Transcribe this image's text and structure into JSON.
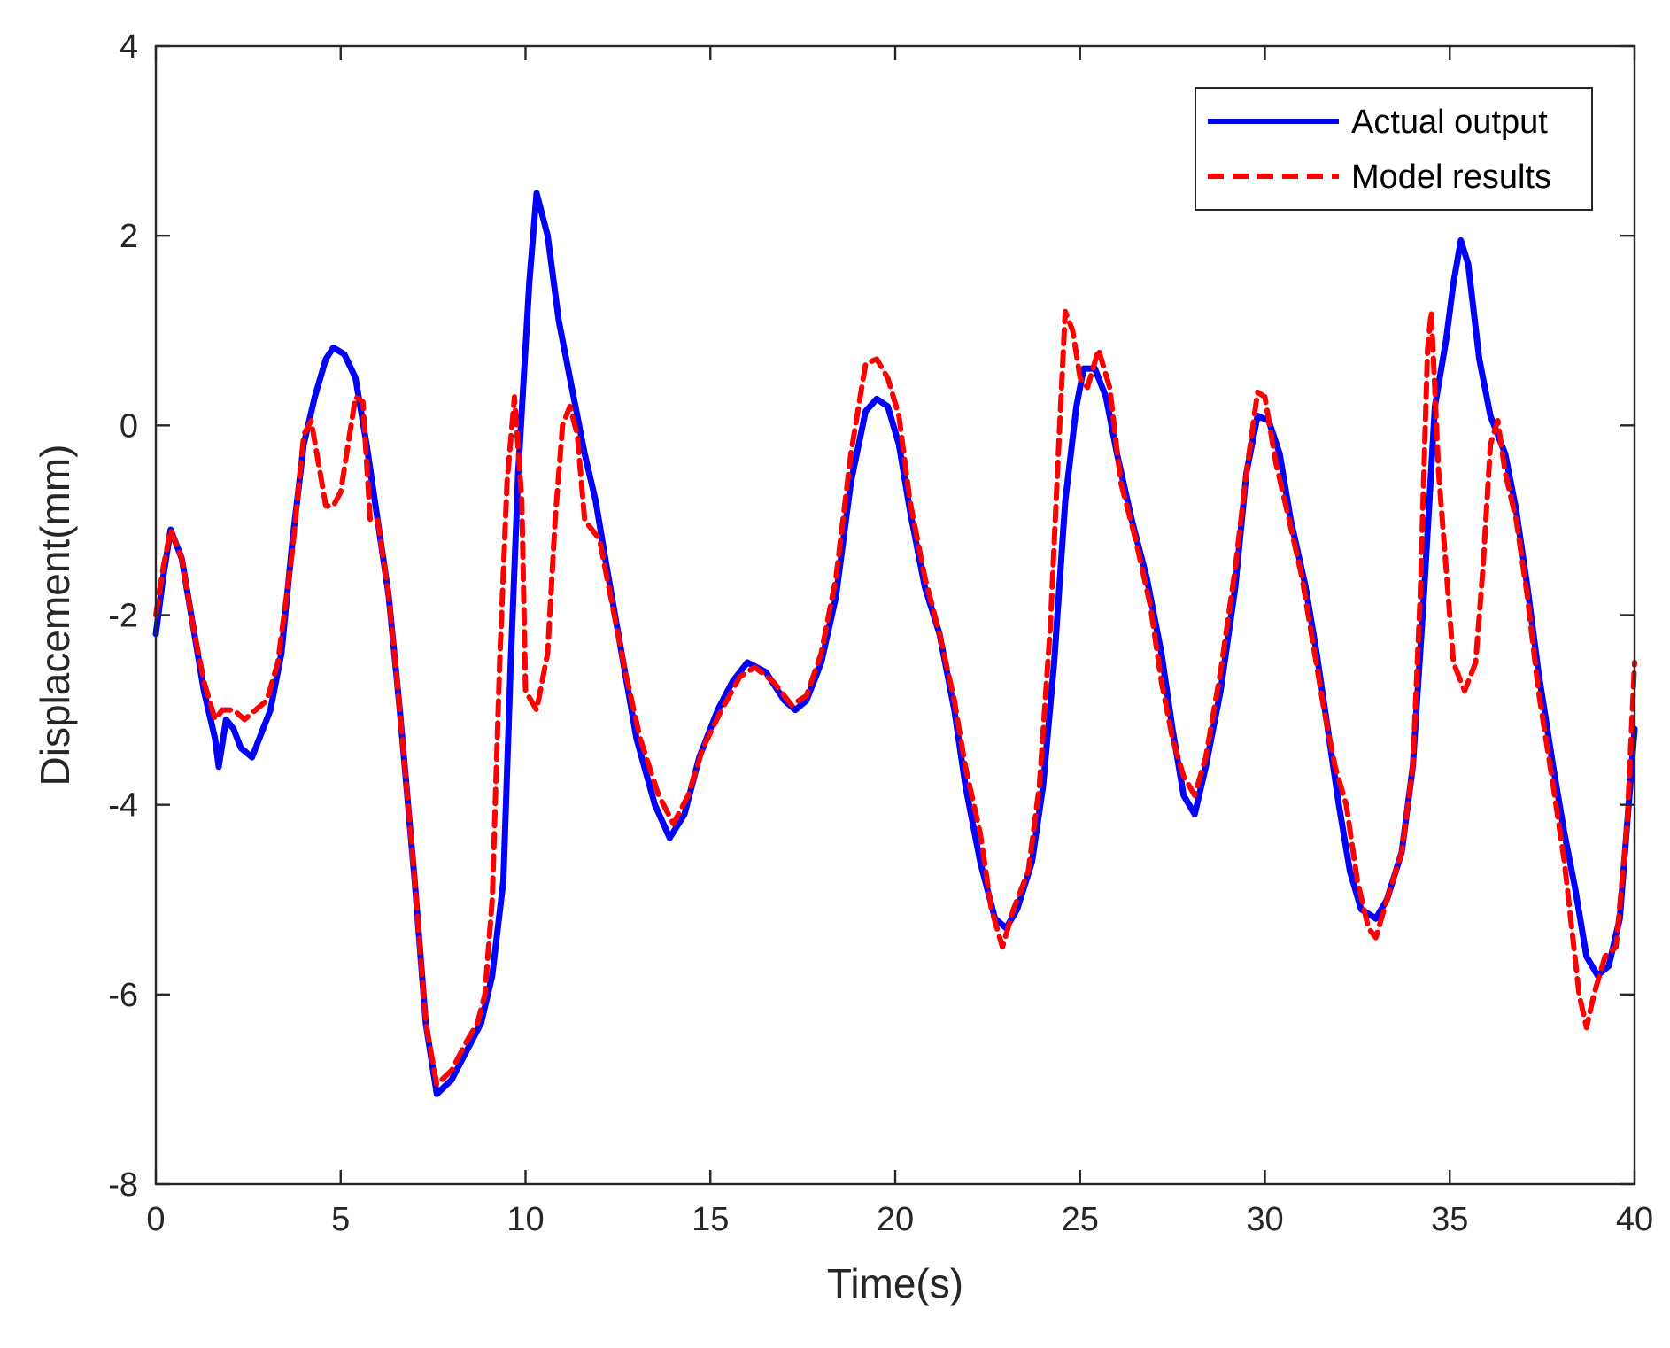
{
  "chart_data": {
    "type": "line",
    "title": "",
    "xlabel": "Time(s)",
    "ylabel": "Displacement(mm)",
    "xlim": [
      0,
      40
    ],
    "ylim": [
      -8,
      4
    ],
    "xticks": [
      0,
      5,
      10,
      15,
      20,
      25,
      30,
      35,
      40
    ],
    "yticks": [
      -8,
      -6,
      -4,
      -2,
      0,
      2,
      4
    ],
    "grid": false,
    "legend_position": "top-right",
    "series": [
      {
        "name": "Actual output",
        "color": "#0000ff",
        "style": "solid",
        "points": [
          [
            0,
            -2.2
          ],
          [
            0.2,
            -1.6
          ],
          [
            0.4,
            -1.1
          ],
          [
            0.7,
            -1.4
          ],
          [
            1.0,
            -2.1
          ],
          [
            1.3,
            -2.8
          ],
          [
            1.6,
            -3.3
          ],
          [
            1.7,
            -3.6
          ],
          [
            1.9,
            -3.1
          ],
          [
            2.1,
            -3.2
          ],
          [
            2.3,
            -3.4
          ],
          [
            2.6,
            -3.5
          ],
          [
            2.8,
            -3.3
          ],
          [
            3.1,
            -3.0
          ],
          [
            3.4,
            -2.4
          ],
          [
            3.7,
            -1.2
          ],
          [
            4.0,
            -0.2
          ],
          [
            4.3,
            0.3
          ],
          [
            4.6,
            0.7
          ],
          [
            4.8,
            0.82
          ],
          [
            5.1,
            0.75
          ],
          [
            5.4,
            0.5
          ],
          [
            5.7,
            -0.2
          ],
          [
            6.0,
            -1.0
          ],
          [
            6.3,
            -1.8
          ],
          [
            6.6,
            -3.0
          ],
          [
            7.0,
            -4.8
          ],
          [
            7.3,
            -6.3
          ],
          [
            7.6,
            -7.05
          ],
          [
            8.0,
            -6.9
          ],
          [
            8.4,
            -6.6
          ],
          [
            8.8,
            -6.3
          ],
          [
            9.1,
            -5.8
          ],
          [
            9.4,
            -4.8
          ],
          [
            9.6,
            -2.5
          ],
          [
            9.8,
            -0.5
          ],
          [
            10.1,
            1.5
          ],
          [
            10.3,
            2.45
          ],
          [
            10.6,
            2.0
          ],
          [
            10.9,
            1.1
          ],
          [
            11.3,
            0.3
          ],
          [
            11.6,
            -0.3
          ],
          [
            11.9,
            -0.8
          ],
          [
            12.2,
            -1.5
          ],
          [
            12.6,
            -2.4
          ],
          [
            13.0,
            -3.3
          ],
          [
            13.5,
            -4.0
          ],
          [
            13.9,
            -4.35
          ],
          [
            14.3,
            -4.1
          ],
          [
            14.7,
            -3.5
          ],
          [
            15.2,
            -3.0
          ],
          [
            15.6,
            -2.7
          ],
          [
            16.0,
            -2.5
          ],
          [
            16.5,
            -2.6
          ],
          [
            17.0,
            -2.9
          ],
          [
            17.3,
            -3.0
          ],
          [
            17.6,
            -2.9
          ],
          [
            18.0,
            -2.5
          ],
          [
            18.4,
            -1.8
          ],
          [
            18.8,
            -0.6
          ],
          [
            19.2,
            0.15
          ],
          [
            19.5,
            0.28
          ],
          [
            19.8,
            0.2
          ],
          [
            20.1,
            -0.2
          ],
          [
            20.4,
            -0.9
          ],
          [
            20.8,
            -1.7
          ],
          [
            21.2,
            -2.2
          ],
          [
            21.6,
            -3.0
          ],
          [
            21.9,
            -3.8
          ],
          [
            22.3,
            -4.6
          ],
          [
            22.7,
            -5.2
          ],
          [
            23.0,
            -5.3
          ],
          [
            23.3,
            -5.1
          ],
          [
            23.7,
            -4.6
          ],
          [
            24.0,
            -3.8
          ],
          [
            24.3,
            -2.5
          ],
          [
            24.6,
            -0.8
          ],
          [
            24.9,
            0.2
          ],
          [
            25.1,
            0.6
          ],
          [
            25.4,
            0.6
          ],
          [
            25.7,
            0.3
          ],
          [
            26.0,
            -0.3
          ],
          [
            26.4,
            -1.0
          ],
          [
            26.8,
            -1.6
          ],
          [
            27.2,
            -2.4
          ],
          [
            27.5,
            -3.2
          ],
          [
            27.8,
            -3.9
          ],
          [
            28.1,
            -4.1
          ],
          [
            28.4,
            -3.6
          ],
          [
            28.8,
            -2.8
          ],
          [
            29.2,
            -1.7
          ],
          [
            29.5,
            -0.5
          ],
          [
            29.8,
            0.1
          ],
          [
            30.1,
            0.05
          ],
          [
            30.4,
            -0.3
          ],
          [
            30.7,
            -1.0
          ],
          [
            31.1,
            -1.7
          ],
          [
            31.4,
            -2.4
          ],
          [
            31.7,
            -3.2
          ],
          [
            32.0,
            -4.0
          ],
          [
            32.3,
            -4.7
          ],
          [
            32.6,
            -5.1
          ],
          [
            33.0,
            -5.2
          ],
          [
            33.3,
            -5.0
          ],
          [
            33.7,
            -4.5
          ],
          [
            34.0,
            -3.6
          ],
          [
            34.3,
            -1.8
          ],
          [
            34.6,
            0.2
          ],
          [
            34.9,
            0.9
          ],
          [
            35.1,
            1.5
          ],
          [
            35.3,
            1.95
          ],
          [
            35.5,
            1.7
          ],
          [
            35.8,
            0.7
          ],
          [
            36.1,
            0.1
          ],
          [
            36.5,
            -0.3
          ],
          [
            36.8,
            -0.9
          ],
          [
            37.1,
            -1.7
          ],
          [
            37.4,
            -2.6
          ],
          [
            37.8,
            -3.6
          ],
          [
            38.1,
            -4.3
          ],
          [
            38.4,
            -4.9
          ],
          [
            38.7,
            -5.6
          ],
          [
            39.0,
            -5.8
          ],
          [
            39.3,
            -5.7
          ],
          [
            39.6,
            -5.2
          ],
          [
            40.0,
            -3.2
          ]
        ]
      },
      {
        "name": "Model results",
        "color": "#ff0000",
        "style": "dashed",
        "points": [
          [
            0,
            -2.0
          ],
          [
            0.2,
            -1.5
          ],
          [
            0.4,
            -1.1
          ],
          [
            0.7,
            -1.4
          ],
          [
            1.0,
            -2.1
          ],
          [
            1.3,
            -2.7
          ],
          [
            1.6,
            -3.1
          ],
          [
            1.8,
            -3.0
          ],
          [
            2.1,
            -3.0
          ],
          [
            2.4,
            -3.1
          ],
          [
            2.7,
            -3.0
          ],
          [
            3.0,
            -2.9
          ],
          [
            3.3,
            -2.5
          ],
          [
            3.7,
            -1.3
          ],
          [
            4.0,
            -0.1
          ],
          [
            4.2,
            0.05
          ],
          [
            4.4,
            -0.4
          ],
          [
            4.6,
            -0.85
          ],
          [
            4.8,
            -0.85
          ],
          [
            5.0,
            -0.7
          ],
          [
            5.2,
            -0.2
          ],
          [
            5.4,
            0.3
          ],
          [
            5.6,
            0.25
          ],
          [
            5.8,
            -1.0
          ],
          [
            6.0,
            -1.0
          ],
          [
            6.3,
            -1.8
          ],
          [
            6.6,
            -3.0
          ],
          [
            7.0,
            -4.8
          ],
          [
            7.3,
            -6.3
          ],
          [
            7.6,
            -6.95
          ],
          [
            8.0,
            -6.8
          ],
          [
            8.4,
            -6.5
          ],
          [
            8.7,
            -6.3
          ],
          [
            8.9,
            -6.0
          ],
          [
            9.1,
            -5.0
          ],
          [
            9.3,
            -2.5
          ],
          [
            9.5,
            -0.6
          ],
          [
            9.7,
            0.3
          ],
          [
            9.9,
            -0.8
          ],
          [
            10.0,
            -2.8
          ],
          [
            10.3,
            -3.0
          ],
          [
            10.6,
            -2.4
          ],
          [
            10.8,
            -1.0
          ],
          [
            11.0,
            0.0
          ],
          [
            11.2,
            0.2
          ],
          [
            11.4,
            -0.1
          ],
          [
            11.6,
            -1.0
          ],
          [
            12.0,
            -1.2
          ],
          [
            12.3,
            -1.8
          ],
          [
            12.7,
            -2.6
          ],
          [
            13.1,
            -3.3
          ],
          [
            13.6,
            -3.9
          ],
          [
            14.0,
            -4.2
          ],
          [
            14.4,
            -3.9
          ],
          [
            14.8,
            -3.4
          ],
          [
            15.3,
            -3.0
          ],
          [
            15.8,
            -2.65
          ],
          [
            16.2,
            -2.55
          ],
          [
            16.7,
            -2.7
          ],
          [
            17.2,
            -2.95
          ],
          [
            17.6,
            -2.85
          ],
          [
            18.0,
            -2.4
          ],
          [
            18.4,
            -1.6
          ],
          [
            18.8,
            -0.3
          ],
          [
            19.2,
            0.65
          ],
          [
            19.5,
            0.7
          ],
          [
            19.8,
            0.5
          ],
          [
            20.1,
            0.1
          ],
          [
            20.4,
            -0.8
          ],
          [
            20.8,
            -1.6
          ],
          [
            21.2,
            -2.2
          ],
          [
            21.6,
            -2.9
          ],
          [
            21.9,
            -3.6
          ],
          [
            22.3,
            -4.3
          ],
          [
            22.6,
            -5.1
          ],
          [
            22.9,
            -5.5
          ],
          [
            23.2,
            -5.1
          ],
          [
            23.6,
            -4.7
          ],
          [
            23.9,
            -3.8
          ],
          [
            24.2,
            -2.1
          ],
          [
            24.4,
            -0.4
          ],
          [
            24.6,
            1.2
          ],
          [
            24.8,
            1.0
          ],
          [
            25.0,
            0.5
          ],
          [
            25.2,
            0.4
          ],
          [
            25.5,
            0.8
          ],
          [
            25.8,
            0.4
          ],
          [
            26.1,
            -0.6
          ],
          [
            26.5,
            -1.2
          ],
          [
            26.9,
            -1.9
          ],
          [
            27.2,
            -2.7
          ],
          [
            27.5,
            -3.3
          ],
          [
            27.8,
            -3.7
          ],
          [
            28.1,
            -3.9
          ],
          [
            28.4,
            -3.5
          ],
          [
            28.8,
            -2.6
          ],
          [
            29.2,
            -1.5
          ],
          [
            29.5,
            -0.5
          ],
          [
            29.8,
            0.35
          ],
          [
            30.0,
            0.3
          ],
          [
            30.3,
            -0.4
          ],
          [
            30.6,
            -0.9
          ],
          [
            31.0,
            -1.6
          ],
          [
            31.3,
            -2.3
          ],
          [
            31.6,
            -3.0
          ],
          [
            31.9,
            -3.6
          ],
          [
            32.2,
            -4.0
          ],
          [
            32.5,
            -4.8
          ],
          [
            32.8,
            -5.3
          ],
          [
            33.0,
            -5.4
          ],
          [
            33.3,
            -5.0
          ],
          [
            33.7,
            -4.5
          ],
          [
            34.0,
            -3.6
          ],
          [
            34.2,
            -1.8
          ],
          [
            34.4,
            0.8
          ],
          [
            34.5,
            1.2
          ],
          [
            34.7,
            -0.5
          ],
          [
            34.9,
            -1.5
          ],
          [
            35.1,
            -2.5
          ],
          [
            35.4,
            -2.8
          ],
          [
            35.7,
            -2.5
          ],
          [
            35.9,
            -1.5
          ],
          [
            36.1,
            -0.2
          ],
          [
            36.3,
            0.05
          ],
          [
            36.5,
            -0.5
          ],
          [
            36.8,
            -1.0
          ],
          [
            37.1,
            -1.8
          ],
          [
            37.4,
            -2.8
          ],
          [
            37.8,
            -3.8
          ],
          [
            38.1,
            -4.6
          ],
          [
            38.3,
            -5.3
          ],
          [
            38.5,
            -6.0
          ],
          [
            38.7,
            -6.35
          ],
          [
            38.9,
            -6.0
          ],
          [
            39.2,
            -5.6
          ],
          [
            39.5,
            -5.5
          ],
          [
            39.8,
            -4.2
          ],
          [
            40.0,
            -2.5
          ]
        ]
      }
    ]
  }
}
